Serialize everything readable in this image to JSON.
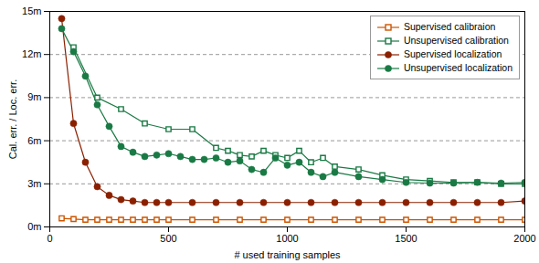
{
  "chart_data": {
    "type": "line",
    "xlabel": "# used training samples",
    "ylabel": "Cal. err. / Loc. err.",
    "xlim": [
      0,
      2000
    ],
    "ylim": [
      0,
      15
    ],
    "xticks": [
      0,
      500,
      1000,
      1500,
      2000
    ],
    "yticks": [
      {
        "value": 0,
        "label": "0m"
      },
      {
        "value": 3,
        "label": "3m"
      },
      {
        "value": 6,
        "label": "6m"
      },
      {
        "value": 9,
        "label": "9m"
      },
      {
        "value": 12,
        "label": "12m"
      },
      {
        "value": 15,
        "label": "15m"
      }
    ],
    "grid": "y",
    "legend": "upper right",
    "series": [
      {
        "name": "Supervised calibraion",
        "color": "#cc5500",
        "marker": "square",
        "x": [
          50,
          100,
          150,
          200,
          250,
          300,
          350,
          400,
          450,
          500,
          600,
          700,
          800,
          900,
          1000,
          1100,
          1200,
          1300,
          1400,
          1500,
          1600,
          1700,
          1800,
          1900,
          2000
        ],
        "values": [
          0.6,
          0.55,
          0.5,
          0.5,
          0.5,
          0.5,
          0.5,
          0.5,
          0.5,
          0.5,
          0.5,
          0.5,
          0.5,
          0.5,
          0.5,
          0.5,
          0.5,
          0.5,
          0.5,
          0.5,
          0.5,
          0.5,
          0.5,
          0.5,
          0.5
        ]
      },
      {
        "name": "Unsupervised calibration",
        "color": "#1a7a45",
        "marker": "square",
        "x": [
          100,
          200,
          300,
          400,
          500,
          600,
          700,
          750,
          800,
          850,
          900,
          950,
          1000,
          1050,
          1100,
          1150,
          1200,
          1300,
          1400,
          1500,
          1600,
          1700,
          1800,
          1900,
          2000
        ],
        "values": [
          12.5,
          9.0,
          8.2,
          7.2,
          6.8,
          6.8,
          5.5,
          5.3,
          5.0,
          4.9,
          5.3,
          5.0,
          4.8,
          5.3,
          4.5,
          4.8,
          4.2,
          4.0,
          3.6,
          3.3,
          3.2,
          3.1,
          3.1,
          3.0,
          3.0
        ]
      },
      {
        "name": "Supervised localization",
        "color": "#8B2000",
        "marker": "circle",
        "x": [
          50,
          100,
          150,
          200,
          250,
          300,
          350,
          400,
          450,
          500,
          600,
          700,
          800,
          900,
          1000,
          1100,
          1200,
          1300,
          1400,
          1500,
          1600,
          1700,
          1800,
          1900,
          2000
        ],
        "values": [
          14.5,
          7.2,
          4.5,
          2.8,
          2.2,
          1.9,
          1.8,
          1.7,
          1.7,
          1.7,
          1.7,
          1.7,
          1.7,
          1.7,
          1.7,
          1.7,
          1.7,
          1.7,
          1.7,
          1.7,
          1.7,
          1.7,
          1.7,
          1.7,
          1.8
        ]
      },
      {
        "name": "Unsupervised localization",
        "color": "#1a7a45",
        "marker": "circle",
        "x": [
          50,
          100,
          150,
          200,
          250,
          300,
          350,
          400,
          450,
          500,
          550,
          600,
          650,
          700,
          750,
          800,
          850,
          900,
          950,
          1000,
          1050,
          1100,
          1150,
          1200,
          1300,
          1400,
          1500,
          1600,
          1700,
          1800,
          1900,
          2000
        ],
        "values": [
          13.8,
          12.2,
          10.5,
          8.5,
          7.0,
          5.6,
          5.2,
          4.9,
          5.0,
          5.1,
          4.9,
          4.7,
          4.7,
          4.8,
          4.5,
          4.6,
          4.0,
          3.8,
          4.8,
          4.3,
          4.5,
          3.8,
          3.5,
          3.8,
          3.5,
          3.3,
          3.1,
          3.05,
          3.05,
          3.1,
          3.05,
          3.1
        ]
      }
    ]
  }
}
